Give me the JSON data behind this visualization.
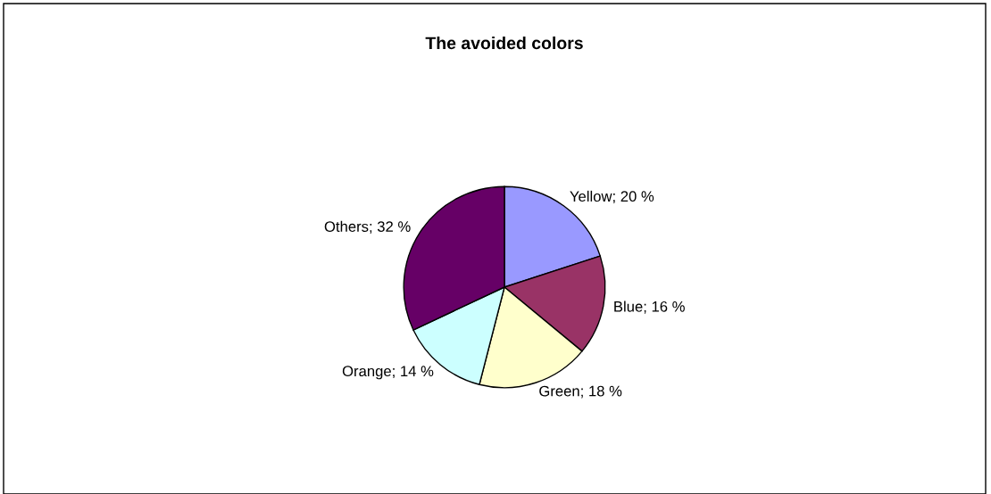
{
  "chart_data": {
    "type": "pie",
    "title": "The avoided colors",
    "categories": [
      "Yellow",
      "Blue",
      "Green",
      "Orange",
      "Others"
    ],
    "values": [
      20,
      16,
      18,
      14,
      32
    ],
    "colors": [
      "#9999ff",
      "#993366",
      "#ffffcc",
      "#ccffff",
      "#660066"
    ],
    "value_labels": [
      "20 %",
      "16 %",
      "18 %",
      "14 %",
      "32 %"
    ],
    "legend": false
  }
}
